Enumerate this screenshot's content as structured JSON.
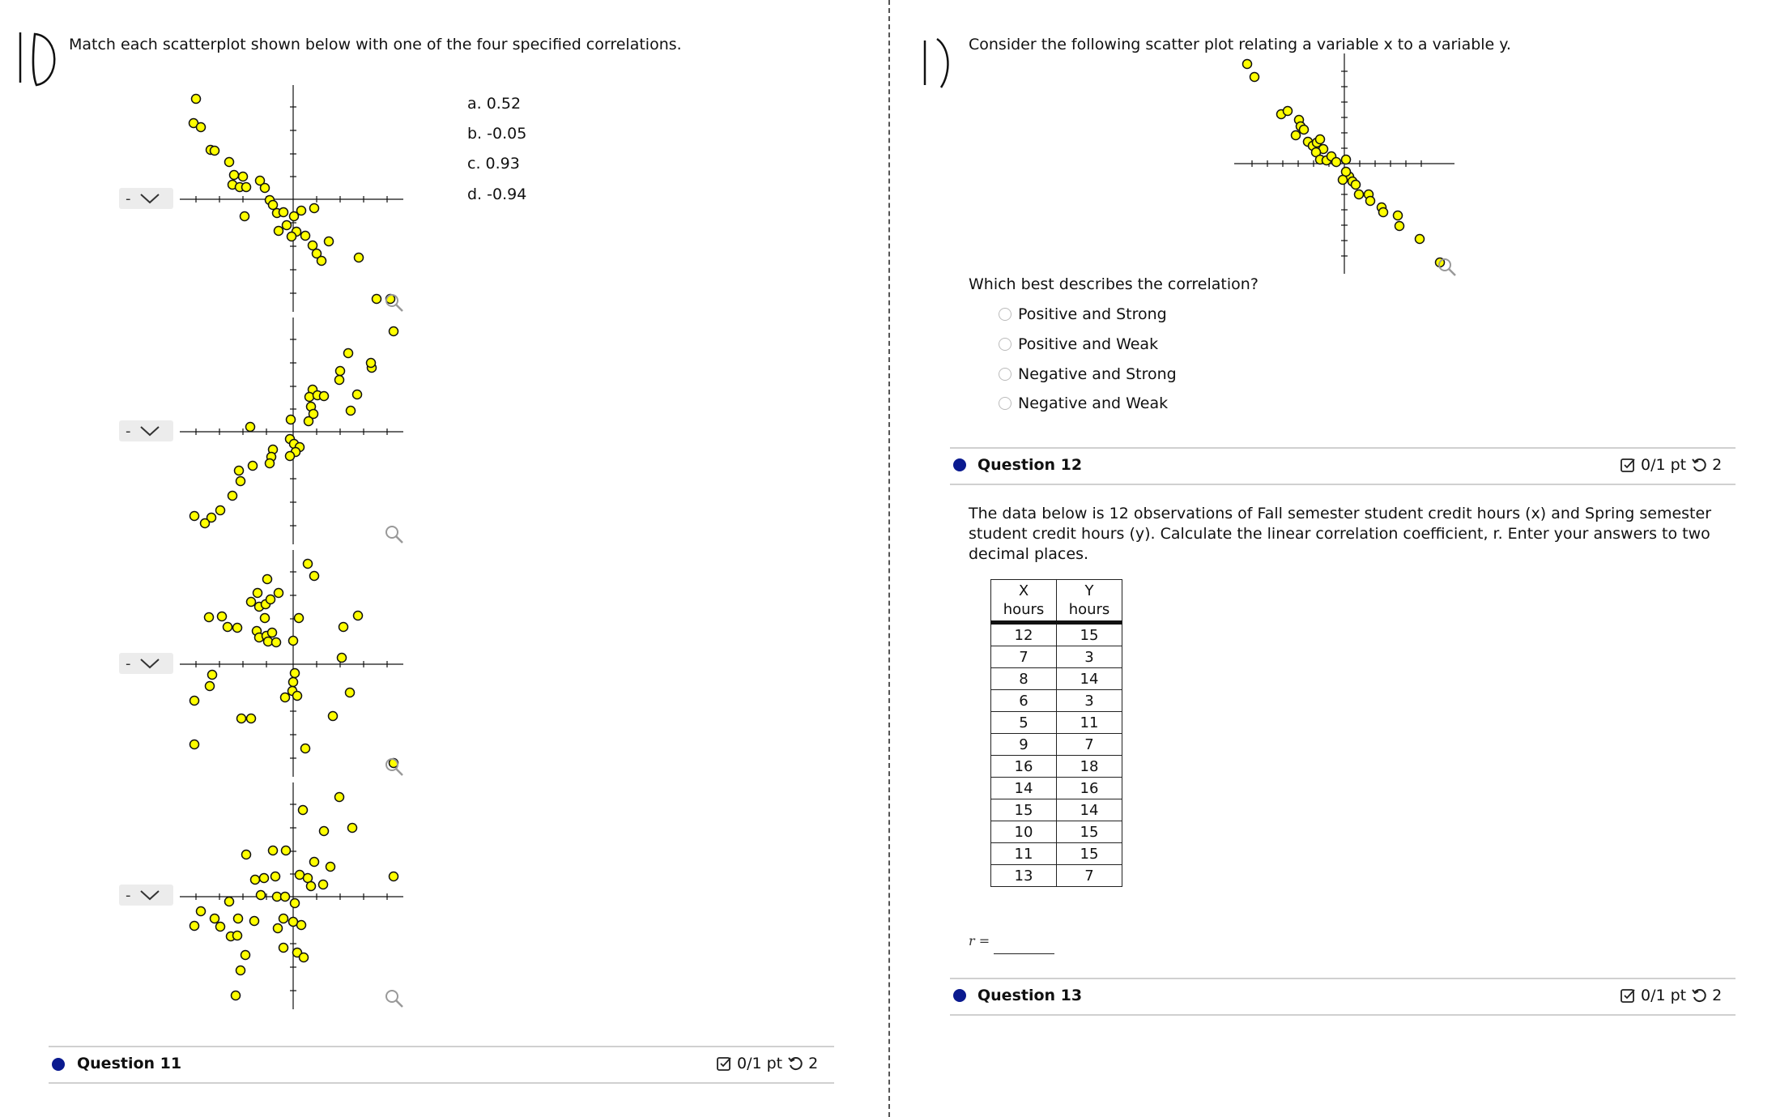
{
  "left": {
    "handwritten_number": "10",
    "instruction": "Match each scatterplot shown below with one of the four specified correlations.",
    "options": [
      "a. 0.52",
      "b. -0.05",
      "c. 0.93",
      "d. -0.94"
    ],
    "selects": [
      "-",
      "-",
      "-",
      "-"
    ],
    "question11": {
      "title": "Question 11",
      "score": "0/1 pt",
      "retries": "2"
    }
  },
  "right": {
    "handwritten_number": "1)",
    "prompt": "Consider the following scatter plot relating a variable x to a variable y.",
    "question": "Which best describes the correlation?",
    "choices": [
      "Positive and Strong",
      "Positive and Weak",
      "Negative and Strong",
      "Negative and Weak"
    ],
    "question12": {
      "title": "Question 12",
      "score": "0/1 pt",
      "retries": "2",
      "text": "The data below is 12 observations of Fall semester student credit hours (x) and Spring semester student credit hours (y). Calculate the linear correlation coefficient, r. Enter your answers to two decimal places.",
      "table": {
        "headers": [
          [
            "X",
            "hours"
          ],
          [
            "Y",
            "hours"
          ]
        ],
        "rows": [
          [
            "12",
            "15"
          ],
          [
            "7",
            "3"
          ],
          [
            "8",
            "14"
          ],
          [
            "6",
            "3"
          ],
          [
            "5",
            "11"
          ],
          [
            "9",
            "7"
          ],
          [
            "16",
            "18"
          ],
          [
            "14",
            "16"
          ],
          [
            "15",
            "14"
          ],
          [
            "10",
            "15"
          ],
          [
            "11",
            "15"
          ],
          [
            "13",
            "7"
          ]
        ]
      },
      "answer_label": "r ="
    },
    "question13": {
      "title": "Question 13",
      "score": "0/1 pt",
      "retries": "2"
    }
  },
  "colors": {
    "point_fill": "#ffff00",
    "bullet": "#0a1a8f"
  }
}
